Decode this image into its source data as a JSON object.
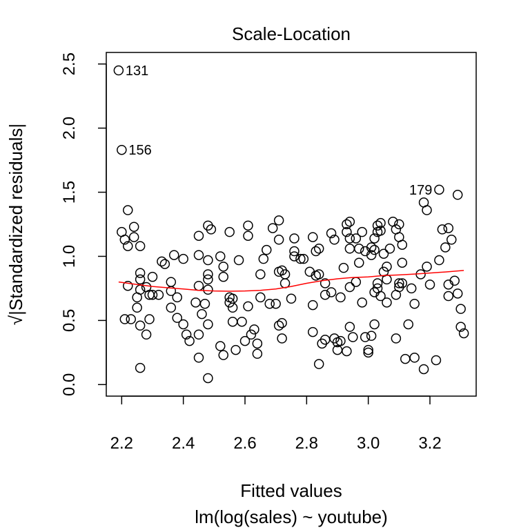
{
  "chart_data": {
    "type": "scatter",
    "title": "Scale-Location",
    "xlabel": "Fitted values",
    "ylabel": "√|Standardized residuals|",
    "subtitle": "lm(log(sales) ~ youtube)",
    "xlim": [
      2.15,
      3.35
    ],
    "ylim": [
      -0.09,
      2.59
    ],
    "x_ticks": [
      2.2,
      2.4,
      2.6,
      2.8,
      3.0,
      3.2
    ],
    "x_tick_labels": [
      "2.2",
      "2.4",
      "2.6",
      "2.8",
      "3.0",
      "3.2"
    ],
    "y_ticks": [
      0.0,
      0.5,
      1.0,
      1.5,
      2.0,
      2.5
    ],
    "y_tick_labels": [
      "0.0",
      "0.5",
      "1.0",
      "1.5",
      "2.0",
      "2.5"
    ],
    "point_color": "#000000",
    "smooth_color": "#ff0000",
    "points": [
      [
        2.19,
        2.45
      ],
      [
        2.2,
        1.83
      ],
      [
        3.23,
        1.52
      ],
      [
        3.29,
        1.48
      ],
      [
        3.18,
        1.42
      ],
      [
        3.19,
        1.36
      ],
      [
        2.22,
        1.36
      ],
      [
        2.2,
        1.19
      ],
      [
        2.24,
        1.23
      ],
      [
        2.21,
        1.13
      ],
      [
        2.22,
        1.08
      ],
      [
        2.24,
        1.15
      ],
      [
        2.26,
        1.08
      ],
      [
        2.22,
        0.77
      ],
      [
        2.26,
        0.82
      ],
      [
        2.26,
        0.87
      ],
      [
        2.28,
        0.76
      ],
      [
        2.29,
        0.7
      ],
      [
        2.26,
        0.74
      ],
      [
        2.25,
        0.68
      ],
      [
        2.25,
        0.6
      ],
      [
        2.26,
        0.46
      ],
      [
        2.29,
        0.51
      ],
      [
        2.28,
        0.39
      ],
      [
        2.23,
        0.51
      ],
      [
        2.21,
        0.51
      ],
      [
        2.26,
        0.13
      ],
      [
        2.3,
        0.84
      ],
      [
        2.3,
        0.7
      ],
      [
        2.32,
        0.7
      ],
      [
        2.33,
        0.96
      ],
      [
        2.34,
        0.94
      ],
      [
        2.36,
        0.73
      ],
      [
        2.36,
        0.8
      ],
      [
        2.37,
        1.01
      ],
      [
        2.38,
        0.68
      ],
      [
        2.36,
        0.6
      ],
      [
        2.38,
        0.52
      ],
      [
        2.4,
        0.98
      ],
      [
        2.4,
        0.47
      ],
      [
        2.41,
        0.39
      ],
      [
        2.42,
        0.34
      ],
      [
        2.44,
        0.64
      ],
      [
        2.45,
        1.16
      ],
      [
        2.45,
        1.01
      ],
      [
        2.45,
        0.77
      ],
      [
        2.46,
        0.55
      ],
      [
        2.47,
        0.63
      ],
      [
        2.48,
        1.24
      ],
      [
        2.49,
        1.21
      ],
      [
        2.48,
        0.97
      ],
      [
        2.48,
        0.86
      ],
      [
        2.48,
        0.82
      ],
      [
        2.48,
        0.74
      ],
      [
        2.48,
        0.47
      ],
      [
        2.45,
        0.39
      ],
      [
        2.45,
        0.21
      ],
      [
        2.48,
        0.05
      ],
      [
        2.52,
        1.0
      ],
      [
        2.53,
        0.92
      ],
      [
        2.53,
        0.84
      ],
      [
        2.55,
        1.19
      ],
      [
        2.55,
        0.68
      ],
      [
        2.55,
        0.64
      ],
      [
        2.56,
        0.67
      ],
      [
        2.56,
        0.6
      ],
      [
        2.56,
        0.49
      ],
      [
        2.52,
        0.3
      ],
      [
        2.53,
        0.23
      ],
      [
        2.57,
        0.27
      ],
      [
        2.58,
        0.97
      ],
      [
        2.59,
        0.49
      ],
      [
        2.6,
        0.34
      ],
      [
        2.61,
        1.24
      ],
      [
        2.61,
        1.16
      ],
      [
        2.61,
        0.61
      ],
      [
        2.62,
        0.39
      ],
      [
        2.63,
        0.43
      ],
      [
        2.64,
        0.32
      ],
      [
        2.64,
        0.24
      ],
      [
        2.65,
        0.86
      ],
      [
        2.65,
        0.68
      ],
      [
        2.66,
        0.98
      ],
      [
        2.67,
        1.05
      ],
      [
        2.68,
        0.63
      ],
      [
        2.69,
        1.22
      ],
      [
        2.7,
        0.63
      ],
      [
        2.71,
        1.28
      ],
      [
        2.71,
        1.13
      ],
      [
        2.71,
        0.88
      ],
      [
        2.72,
        0.89
      ],
      [
        2.72,
        0.48
      ],
      [
        2.73,
        0.86
      ],
      [
        2.71,
        0.46
      ],
      [
        2.72,
        0.36
      ],
      [
        2.73,
        0.79
      ],
      [
        2.75,
        0.67
      ],
      [
        2.76,
        1.14
      ],
      [
        2.76,
        1.04
      ],
      [
        2.76,
        1.0
      ],
      [
        2.78,
        0.98
      ],
      [
        2.79,
        0.98
      ],
      [
        2.81,
        0.88
      ],
      [
        2.82,
        1.15
      ],
      [
        2.83,
        1.04
      ],
      [
        2.83,
        0.85
      ],
      [
        2.84,
        1.06
      ],
      [
        2.84,
        0.86
      ],
      [
        2.82,
        0.41
      ],
      [
        2.82,
        0.62
      ],
      [
        2.84,
        0.16
      ],
      [
        2.85,
        0.32
      ],
      [
        2.86,
        0.35
      ],
      [
        2.86,
        0.79
      ],
      [
        2.86,
        0.7
      ],
      [
        2.88,
        1.18
      ],
      [
        2.88,
        0.72
      ],
      [
        2.89,
        1.13
      ],
      [
        2.89,
        0.36
      ],
      [
        2.9,
        0.33
      ],
      [
        2.9,
        0.27
      ],
      [
        2.91,
        0.34
      ],
      [
        2.91,
        0.68
      ],
      [
        2.92,
        0.91
      ],
      [
        2.93,
        1.25
      ],
      [
        2.93,
        1.19
      ],
      [
        2.94,
        1.27
      ],
      [
        2.94,
        1.14
      ],
      [
        2.94,
        1.06
      ],
      [
        2.94,
        0.76
      ],
      [
        2.94,
        0.45
      ],
      [
        2.95,
        0.37
      ],
      [
        2.93,
        0.26
      ],
      [
        2.96,
        1.14
      ],
      [
        2.96,
        0.8
      ],
      [
        2.97,
        1.06
      ],
      [
        2.97,
        0.95
      ],
      [
        2.98,
        1.19
      ],
      [
        2.98,
        0.64
      ],
      [
        2.99,
        1.04
      ],
      [
        2.99,
        0.37
      ],
      [
        3.0,
        0.27
      ],
      [
        3.0,
        0.25
      ],
      [
        3.01,
        0.38
      ],
      [
        3.01,
        1.01
      ],
      [
        3.01,
        1.07
      ],
      [
        3.02,
        1.14
      ],
      [
        3.02,
        1.05
      ],
      [
        3.02,
        0.72
      ],
      [
        3.02,
        0.47
      ],
      [
        3.03,
        1.19
      ],
      [
        3.03,
        1.24
      ],
      [
        3.04,
        1.26
      ],
      [
        3.04,
        1.2
      ],
      [
        3.03,
        0.75
      ],
      [
        3.03,
        0.79
      ],
      [
        3.04,
        0.69
      ],
      [
        3.05,
        1.02
      ],
      [
        3.05,
        0.88
      ],
      [
        3.06,
        0.82
      ],
      [
        3.06,
        0.92
      ],
      [
        3.06,
        0.64
      ],
      [
        3.07,
        1.06
      ],
      [
        3.08,
        1.27
      ],
      [
        3.09,
        1.21
      ],
      [
        3.09,
        0.7
      ],
      [
        3.09,
        0.36
      ],
      [
        3.1,
        1.25
      ],
      [
        3.1,
        1.15
      ],
      [
        3.1,
        0.79
      ],
      [
        3.1,
        0.76
      ],
      [
        3.11,
        1.09
      ],
      [
        3.11,
        0.79
      ],
      [
        3.11,
        0.95
      ],
      [
        3.12,
        0.2
      ],
      [
        3.13,
        0.47
      ],
      [
        3.14,
        0.75
      ],
      [
        3.15,
        0.63
      ],
      [
        3.15,
        0.21
      ],
      [
        3.17,
        0.86
      ],
      [
        3.18,
        0.12
      ],
      [
        3.19,
        0.92
      ],
      [
        3.2,
        0.78
      ],
      [
        3.22,
        0.19
      ],
      [
        3.23,
        0.97
      ],
      [
        3.24,
        1.21
      ],
      [
        3.25,
        1.07
      ],
      [
        3.26,
        1.22
      ],
      [
        3.26,
        0.78
      ],
      [
        3.26,
        0.69
      ],
      [
        3.27,
        1.13
      ],
      [
        3.28,
        0.81
      ],
      [
        3.29,
        0.71
      ],
      [
        3.3,
        0.45
      ],
      [
        3.3,
        0.59
      ],
      [
        3.31,
        0.4
      ]
    ],
    "labeled_points": [
      {
        "label": "131",
        "x": 2.19,
        "y": 2.45,
        "side": "right"
      },
      {
        "label": "156",
        "x": 2.2,
        "y": 1.83,
        "side": "right"
      },
      {
        "label": "179",
        "x": 3.23,
        "y": 1.52,
        "side": "left"
      }
    ],
    "smooth_line": [
      [
        2.19,
        0.8
      ],
      [
        2.25,
        0.78
      ],
      [
        2.3,
        0.765
      ],
      [
        2.35,
        0.755
      ],
      [
        2.4,
        0.745
      ],
      [
        2.45,
        0.735
      ],
      [
        2.5,
        0.73
      ],
      [
        2.55,
        0.728
      ],
      [
        2.6,
        0.73
      ],
      [
        2.65,
        0.735
      ],
      [
        2.7,
        0.745
      ],
      [
        2.75,
        0.765
      ],
      [
        2.8,
        0.79
      ],
      [
        2.85,
        0.81
      ],
      [
        2.9,
        0.825
      ],
      [
        2.95,
        0.835
      ],
      [
        3.0,
        0.84
      ],
      [
        3.05,
        0.85
      ],
      [
        3.1,
        0.855
      ],
      [
        3.15,
        0.862
      ],
      [
        3.2,
        0.87
      ],
      [
        3.25,
        0.878
      ],
      [
        3.31,
        0.89
      ]
    ]
  }
}
